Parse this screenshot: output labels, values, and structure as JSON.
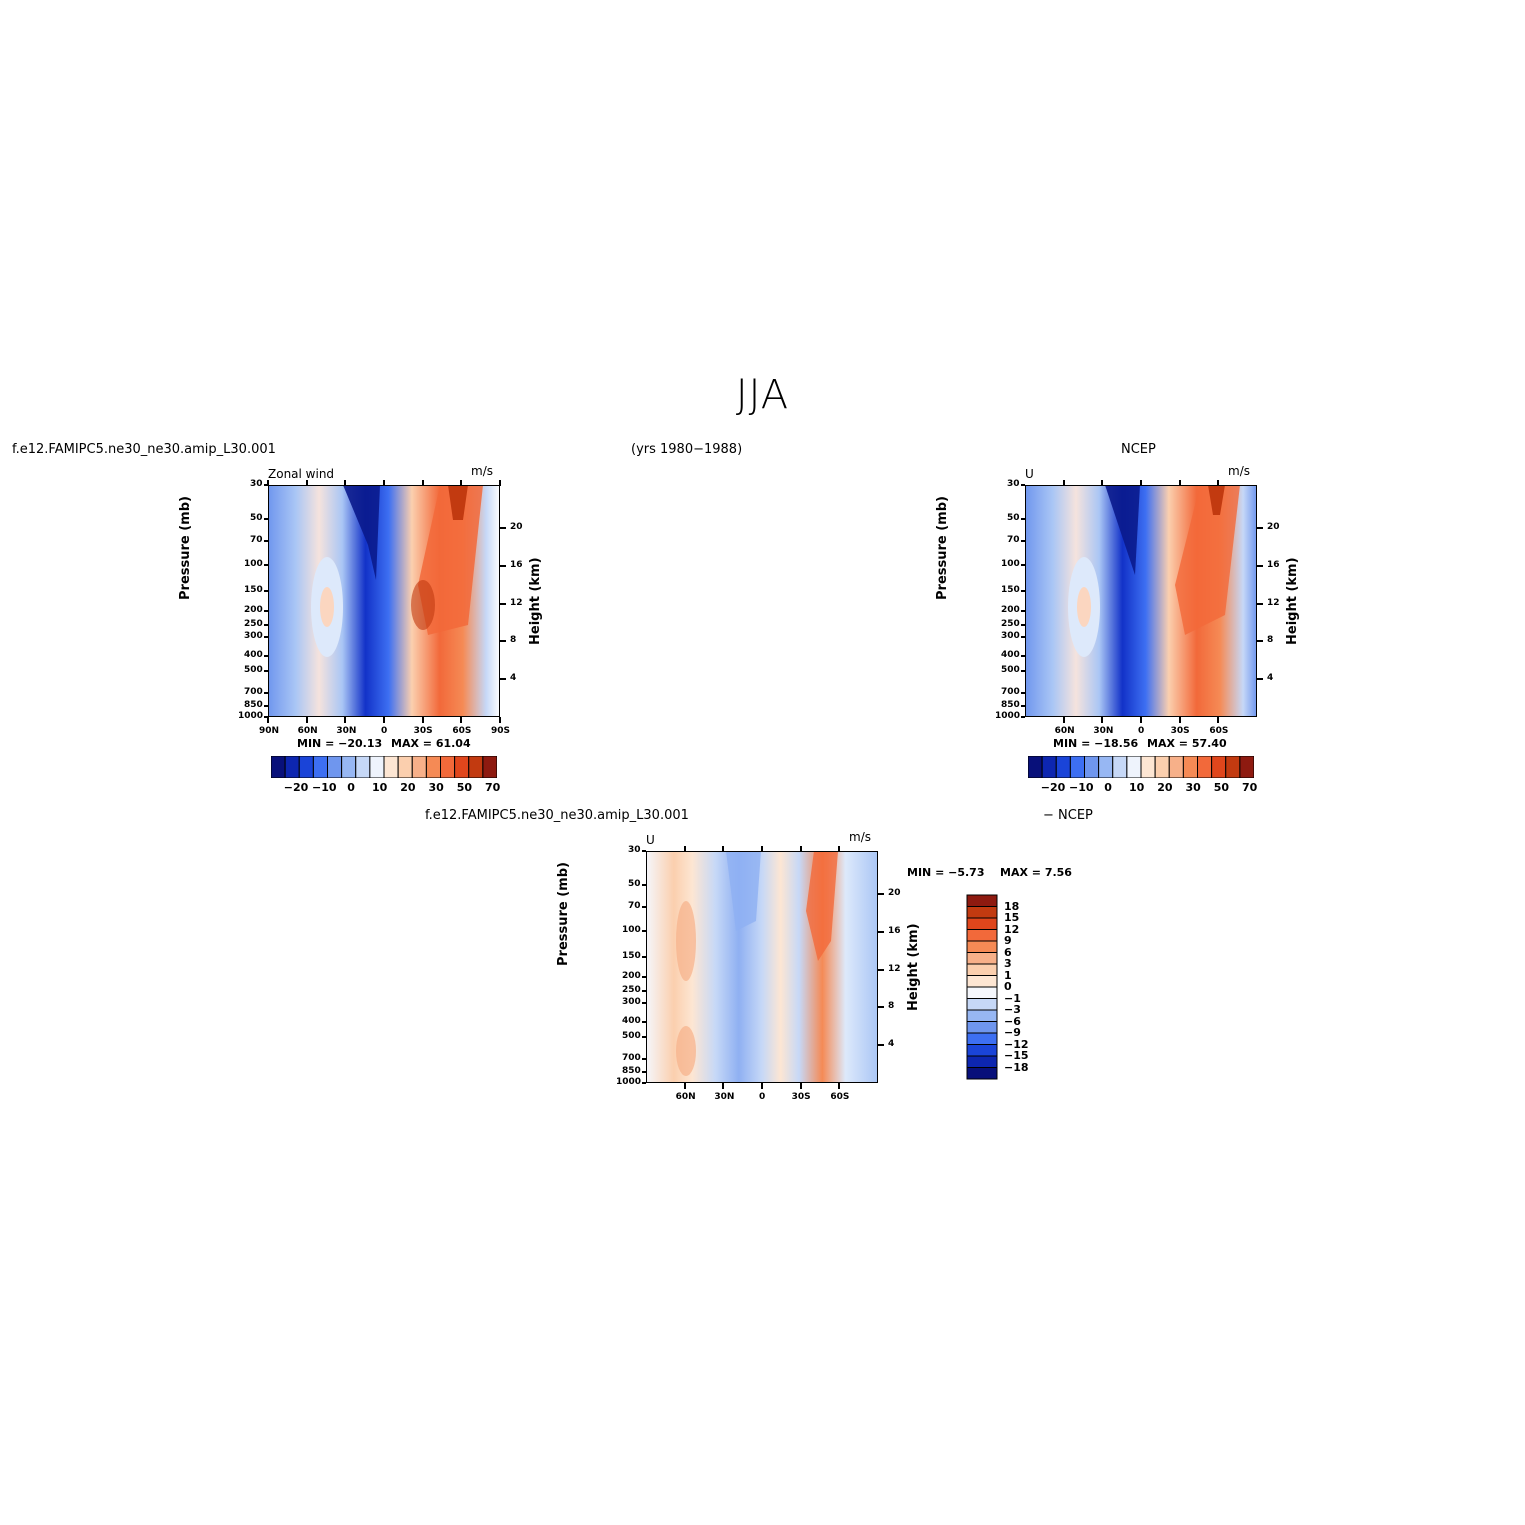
{
  "page": {
    "title": "JJA",
    "case_name": "f.e12.FAMIPC5.ne30_ne30.amip_L30.001",
    "years": "(yrs 1980−1988)",
    "obs_name": "NCEP",
    "diff_case_name": "f.e12.FAMIPC5.ne30_ne30.amip_L30.001",
    "diff_suffix": "− NCEP"
  },
  "colors": {
    "blue_dark": "#0a1a8c",
    "blue": "#3d6ff2",
    "blue_light": "#aac6f5",
    "neutral": "#f5f7fc",
    "orange_light": "#fbcfae",
    "orange": "#f2693a",
    "red_dark": "#c23a10"
  },
  "chart_data": [
    {
      "type": "heatmap",
      "variable_label": "Zonal wind",
      "units": "m/s",
      "min_label": "MIN = −20.13",
      "max_label": "MAX =  61.04",
      "min": -20.13,
      "max": 61.04,
      "ylabel": "Pressure (mb)",
      "y2label": "Height (km)",
      "x_ticks": [
        "90N",
        "60N",
        "30N",
        "0",
        "30S",
        "60S",
        "90S"
      ],
      "y_ticks": [
        "30",
        "50",
        "70",
        "100",
        "150",
        "200",
        "250",
        "300",
        "400",
        "500",
        "700",
        "850",
        "1000"
      ],
      "y2_ticks": [
        "20",
        "16",
        "12",
        "8",
        "4"
      ],
      "colorbar_orientation": "horizontal",
      "colorbar_labels": [
        "−20",
        "−10",
        "0",
        "10",
        "20",
        "30",
        "50",
        "70"
      ]
    },
    {
      "type": "heatmap",
      "variable_label": "U",
      "units": "m/s",
      "min_label": "MIN = −18.56",
      "max_label": "MAX =  57.40",
      "min": -18.56,
      "max": 57.4,
      "ylabel": "Pressure (mb)",
      "y2label": "Height (km)",
      "x_ticks": [
        "60N",
        "30N",
        "0",
        "30S",
        "60S"
      ],
      "y_ticks": [
        "30",
        "50",
        "70",
        "100",
        "150",
        "200",
        "250",
        "300",
        "400",
        "500",
        "700",
        "850",
        "1000"
      ],
      "y2_ticks": [
        "20",
        "16",
        "12",
        "8",
        "4"
      ],
      "colorbar_orientation": "horizontal",
      "colorbar_labels": [
        "−20",
        "−10",
        "0",
        "10",
        "20",
        "30",
        "50",
        "70"
      ]
    },
    {
      "type": "heatmap",
      "variable_label": "U",
      "units": "m/s",
      "min_label": "MIN =   −5.73",
      "max_label": "MAX =    7.56",
      "min": -5.73,
      "max": 7.56,
      "ylabel": "Pressure (mb)",
      "y2label": "Height (km)",
      "x_ticks": [
        "60N",
        "30N",
        "0",
        "30S",
        "60S"
      ],
      "y_ticks": [
        "30",
        "50",
        "70",
        "100",
        "150",
        "200",
        "250",
        "300",
        "400",
        "500",
        "700",
        "850",
        "1000"
      ],
      "y2_ticks": [
        "20",
        "16",
        "12",
        "8",
        "4"
      ],
      "colorbar_orientation": "vertical",
      "colorbar_labels": [
        "18",
        "15",
        "12",
        "9",
        "6",
        "3",
        "1",
        "0",
        "−1",
        "−3",
        "−6",
        "−9",
        "−12",
        "−15",
        "−18"
      ]
    }
  ]
}
